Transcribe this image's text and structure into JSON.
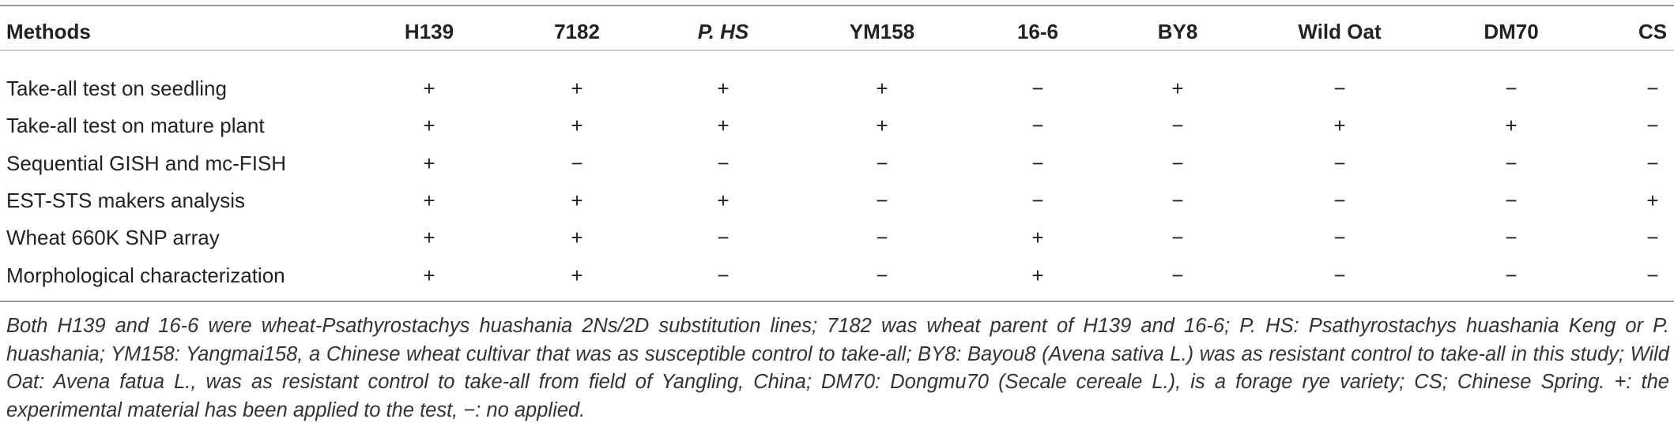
{
  "table": {
    "header": [
      "Methods",
      "H139",
      "7182",
      "P. HS",
      "YM158",
      "16-6",
      "BY8",
      "Wild Oat",
      "DM70",
      "CS"
    ],
    "rows": [
      [
        "Take-all test on seedling",
        "+",
        "+",
        "+",
        "+",
        "−",
        "+",
        "−",
        "−",
        "−"
      ],
      [
        "Take-all test on mature plant",
        "+",
        "+",
        "+",
        "+",
        "−",
        "−",
        "+",
        "+",
        "−"
      ],
      [
        "Sequential GISH and mc-FISH",
        "+",
        "−",
        "−",
        "−",
        "−",
        "−",
        "−",
        "−",
        "−"
      ],
      [
        "EST-STS makers analysis",
        "+",
        "+",
        "+",
        "−",
        "−",
        "−",
        "−",
        "−",
        "+"
      ],
      [
        "Wheat 660K SNP array",
        "+",
        "+",
        "−",
        "−",
        "+",
        "−",
        "−",
        "−",
        "−"
      ],
      [
        "Morphological characterization",
        "+",
        "+",
        "−",
        "−",
        "+",
        "−",
        "−",
        "−",
        "−"
      ]
    ],
    "footnote": "Both H139 and 16-6 were wheat-Psathyrostachys huashania 2Ns/2D substitution lines; 7182 was wheat parent of H139 and 16-6; P. HS: Psathyrostachys huashania Keng or P. huashania; YM158: Yangmai158, a Chinese wheat cultivar that was as susceptible control to take-all; BY8: Bayou8 (Avena sativa L.) was as resistant control to take-all in this study; Wild Oat: Avena fatua L., was as resistant control to take-all from field of Yangling, China; DM70: Dongmu70 (Secale cereale L.), is a forage rye variety; CS; Chinese Spring. +: the experimental material has been applied to the test, −: no applied."
  }
}
